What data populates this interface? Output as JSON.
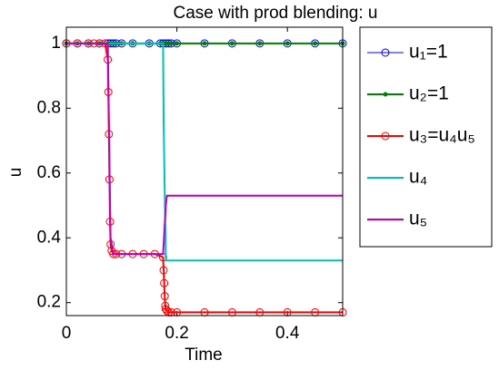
{
  "chart_data": {
    "type": "line",
    "title": "Case with prod blending: u",
    "xlabel": "Time",
    "ylabel": "u",
    "xlim": [
      0,
      0.5
    ],
    "ylim": [
      0.16,
      1.05
    ],
    "xticks": [
      0,
      0.2,
      0.4
    ],
    "yticks": [
      0.2,
      0.4,
      0.6,
      0.8,
      1
    ],
    "legend": "outside-right",
    "series": [
      {
        "name": "u₁=1",
        "color": "#0000ff",
        "marker": "o",
        "x": [
          0,
          0.02,
          0.04,
          0.06,
          0.075,
          0.08,
          0.085,
          0.09,
          0.1,
          0.12,
          0.15,
          0.17,
          0.175,
          0.18,
          0.185,
          0.19,
          0.2,
          0.25,
          0.3,
          0.35,
          0.4,
          0.45,
          0.5
        ],
        "values": [
          1,
          1,
          1,
          1,
          1,
          1,
          1,
          1,
          1,
          1,
          1,
          1,
          1,
          1,
          1,
          1,
          1,
          1,
          1,
          1,
          1,
          1,
          1
        ]
      },
      {
        "name": "u₂=1",
        "color": "#008000",
        "marker": ".",
        "x": [
          0,
          0.02,
          0.04,
          0.06,
          0.075,
          0.08,
          0.085,
          0.09,
          0.1,
          0.12,
          0.15,
          0.17,
          0.175,
          0.18,
          0.185,
          0.19,
          0.2,
          0.25,
          0.3,
          0.35,
          0.4,
          0.45,
          0.5
        ],
        "values": [
          1,
          1,
          1,
          1,
          1,
          1,
          1,
          1,
          1,
          1,
          1,
          1,
          1,
          1,
          1,
          1,
          1,
          1,
          1,
          1,
          1,
          1,
          1
        ]
      },
      {
        "name": "u₃=u₄u₅",
        "color": "#ff0000",
        "marker": "o",
        "x": [
          0,
          0.02,
          0.04,
          0.05,
          0.06,
          0.07,
          0.075,
          0.076,
          0.077,
          0.078,
          0.079,
          0.08,
          0.082,
          0.085,
          0.09,
          0.1,
          0.12,
          0.14,
          0.16,
          0.175,
          0.176,
          0.177,
          0.178,
          0.179,
          0.18,
          0.182,
          0.185,
          0.19,
          0.2,
          0.25,
          0.3,
          0.35,
          0.4,
          0.45,
          0.5
        ],
        "values": [
          1,
          1,
          1,
          1,
          1,
          1,
          0.95,
          0.85,
          0.72,
          0.58,
          0.45,
          0.38,
          0.36,
          0.35,
          0.35,
          0.35,
          0.35,
          0.35,
          0.35,
          0.34,
          0.3,
          0.26,
          0.22,
          0.19,
          0.18,
          0.175,
          0.17,
          0.17,
          0.17,
          0.17,
          0.17,
          0.17,
          0.17,
          0.17,
          0.17
        ]
      },
      {
        "name": "u₄",
        "color": "#00bfbf",
        "marker": "none",
        "x": [
          0,
          0.175,
          0.176,
          0.18,
          0.5
        ],
        "values": [
          1,
          1,
          0.76,
          0.33,
          0.33
        ]
      },
      {
        "name": "u₅",
        "color": "#bf00bf",
        "marker": "none",
        "x": [
          0,
          0.075,
          0.08,
          0.085,
          0.175,
          0.18,
          0.182,
          0.5
        ],
        "values": [
          1,
          1,
          0.4,
          0.35,
          0.35,
          0.5,
          0.53,
          0.53
        ]
      }
    ]
  }
}
